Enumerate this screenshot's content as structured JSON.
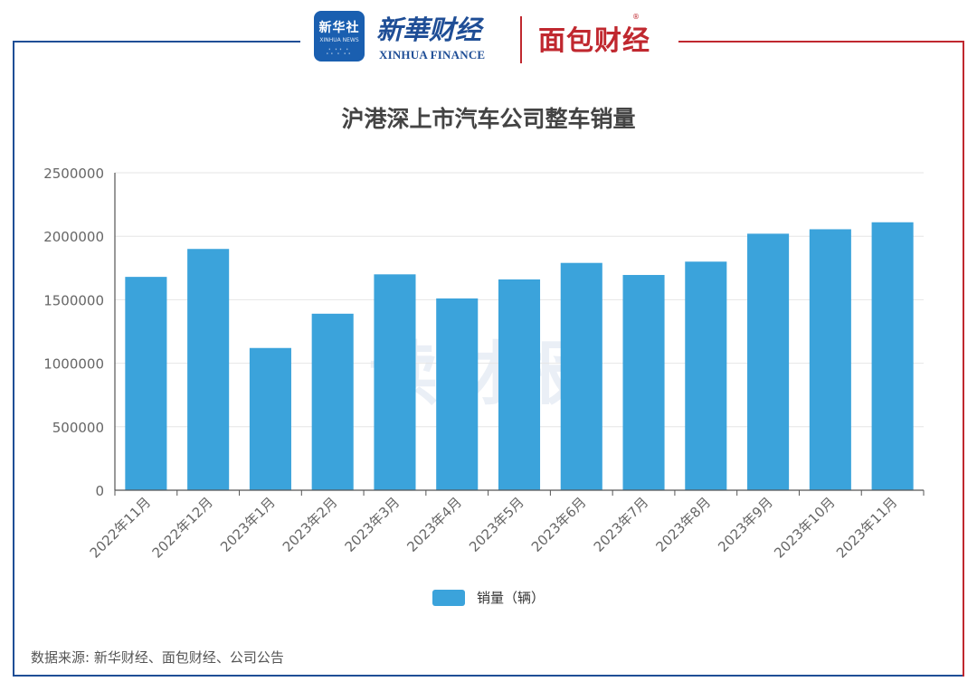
{
  "header": {
    "xinhua_logo_cn": "新华社",
    "xinhua_logo_en": "XINHUA NEWS",
    "brand_cn": "新華财经",
    "brand_en": "XINHUA FINANCE",
    "partner_logo": "面包财经",
    "partner_reg": "®"
  },
  "watermark": "读财报",
  "source_note": "数据来源: 新华财经、面包财经、公司公告",
  "colors": {
    "bar": "#3ba3db",
    "frame_left": "#1f4e96",
    "frame_right": "#c0282f"
  },
  "chart_data": {
    "type": "bar",
    "title": "沪港深上市汽车公司整车销量",
    "xlabel": "",
    "ylabel": "",
    "categories": [
      "2022年11月",
      "2022年12月",
      "2023年1月",
      "2023年2月",
      "2023年3月",
      "2023年4月",
      "2023年5月",
      "2023年6月",
      "2023年7月",
      "2023年8月",
      "2023年9月",
      "2023年10月",
      "2023年11月"
    ],
    "series": [
      {
        "name": "销量（辆）",
        "values": [
          1680000,
          1900000,
          1120000,
          1390000,
          1700000,
          1510000,
          1660000,
          1790000,
          1695000,
          1800000,
          2020000,
          2055000,
          2110000
        ]
      }
    ],
    "ylim": [
      0,
      2500000
    ],
    "yticks": [
      "0",
      "500000",
      "1000000",
      "1500000",
      "2000000",
      "2500000"
    ],
    "grid": true,
    "legend": "bottom-center"
  }
}
